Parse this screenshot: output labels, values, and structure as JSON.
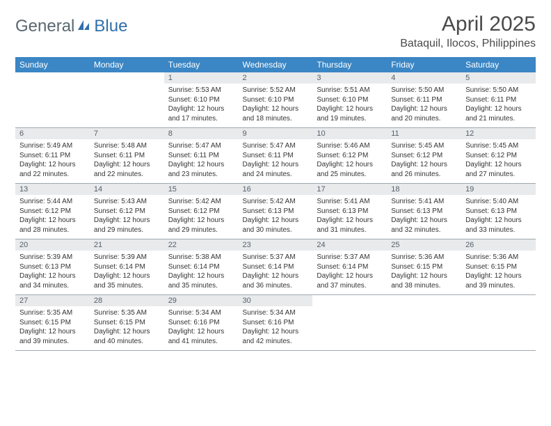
{
  "brand": {
    "part1": "General",
    "part2": "Blue"
  },
  "title": "April 2025",
  "location": "Bataquil, Ilocos, Philippines",
  "colors": {
    "header_bg": "#3b86c4",
    "header_text": "#ffffff",
    "daynum_bg": "#e8eaec",
    "daynum_text": "#55606a",
    "body_text": "#333333",
    "rule": "#9fa8ae",
    "logo_gray": "#5a6770",
    "logo_blue": "#2f6fab",
    "background": "#ffffff"
  },
  "weekdays": [
    "Sunday",
    "Monday",
    "Tuesday",
    "Wednesday",
    "Thursday",
    "Friday",
    "Saturday"
  ],
  "weeks": [
    [
      null,
      null,
      {
        "n": "1",
        "sr": "5:53 AM",
        "ss": "6:10 PM",
        "dl": "12 hours and 17 minutes."
      },
      {
        "n": "2",
        "sr": "5:52 AM",
        "ss": "6:10 PM",
        "dl": "12 hours and 18 minutes."
      },
      {
        "n": "3",
        "sr": "5:51 AM",
        "ss": "6:10 PM",
        "dl": "12 hours and 19 minutes."
      },
      {
        "n": "4",
        "sr": "5:50 AM",
        "ss": "6:11 PM",
        "dl": "12 hours and 20 minutes."
      },
      {
        "n": "5",
        "sr": "5:50 AM",
        "ss": "6:11 PM",
        "dl": "12 hours and 21 minutes."
      }
    ],
    [
      {
        "n": "6",
        "sr": "5:49 AM",
        "ss": "6:11 PM",
        "dl": "12 hours and 22 minutes."
      },
      {
        "n": "7",
        "sr": "5:48 AM",
        "ss": "6:11 PM",
        "dl": "12 hours and 22 minutes."
      },
      {
        "n": "8",
        "sr": "5:47 AM",
        "ss": "6:11 PM",
        "dl": "12 hours and 23 minutes."
      },
      {
        "n": "9",
        "sr": "5:47 AM",
        "ss": "6:11 PM",
        "dl": "12 hours and 24 minutes."
      },
      {
        "n": "10",
        "sr": "5:46 AM",
        "ss": "6:12 PM",
        "dl": "12 hours and 25 minutes."
      },
      {
        "n": "11",
        "sr": "5:45 AM",
        "ss": "6:12 PM",
        "dl": "12 hours and 26 minutes."
      },
      {
        "n": "12",
        "sr": "5:45 AM",
        "ss": "6:12 PM",
        "dl": "12 hours and 27 minutes."
      }
    ],
    [
      {
        "n": "13",
        "sr": "5:44 AM",
        "ss": "6:12 PM",
        "dl": "12 hours and 28 minutes."
      },
      {
        "n": "14",
        "sr": "5:43 AM",
        "ss": "6:12 PM",
        "dl": "12 hours and 29 minutes."
      },
      {
        "n": "15",
        "sr": "5:42 AM",
        "ss": "6:12 PM",
        "dl": "12 hours and 29 minutes."
      },
      {
        "n": "16",
        "sr": "5:42 AM",
        "ss": "6:13 PM",
        "dl": "12 hours and 30 minutes."
      },
      {
        "n": "17",
        "sr": "5:41 AM",
        "ss": "6:13 PM",
        "dl": "12 hours and 31 minutes."
      },
      {
        "n": "18",
        "sr": "5:41 AM",
        "ss": "6:13 PM",
        "dl": "12 hours and 32 minutes."
      },
      {
        "n": "19",
        "sr": "5:40 AM",
        "ss": "6:13 PM",
        "dl": "12 hours and 33 minutes."
      }
    ],
    [
      {
        "n": "20",
        "sr": "5:39 AM",
        "ss": "6:13 PM",
        "dl": "12 hours and 34 minutes."
      },
      {
        "n": "21",
        "sr": "5:39 AM",
        "ss": "6:14 PM",
        "dl": "12 hours and 35 minutes."
      },
      {
        "n": "22",
        "sr": "5:38 AM",
        "ss": "6:14 PM",
        "dl": "12 hours and 35 minutes."
      },
      {
        "n": "23",
        "sr": "5:37 AM",
        "ss": "6:14 PM",
        "dl": "12 hours and 36 minutes."
      },
      {
        "n": "24",
        "sr": "5:37 AM",
        "ss": "6:14 PM",
        "dl": "12 hours and 37 minutes."
      },
      {
        "n": "25",
        "sr": "5:36 AM",
        "ss": "6:15 PM",
        "dl": "12 hours and 38 minutes."
      },
      {
        "n": "26",
        "sr": "5:36 AM",
        "ss": "6:15 PM",
        "dl": "12 hours and 39 minutes."
      }
    ],
    [
      {
        "n": "27",
        "sr": "5:35 AM",
        "ss": "6:15 PM",
        "dl": "12 hours and 39 minutes."
      },
      {
        "n": "28",
        "sr": "5:35 AM",
        "ss": "6:15 PM",
        "dl": "12 hours and 40 minutes."
      },
      {
        "n": "29",
        "sr": "5:34 AM",
        "ss": "6:16 PM",
        "dl": "12 hours and 41 minutes."
      },
      {
        "n": "30",
        "sr": "5:34 AM",
        "ss": "6:16 PM",
        "dl": "12 hours and 42 minutes."
      },
      null,
      null,
      null
    ]
  ],
  "labels": {
    "sunrise": "Sunrise:",
    "sunset": "Sunset:",
    "daylight": "Daylight:"
  }
}
